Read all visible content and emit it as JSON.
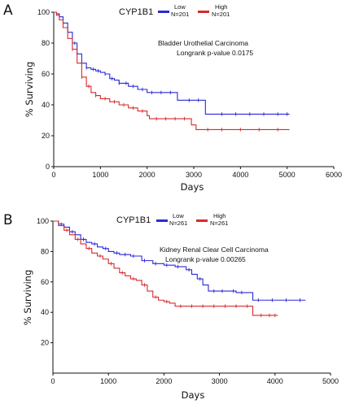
{
  "chart_data": [
    {
      "type": "line",
      "panel_label": "A",
      "gene_label": "CYP1B1",
      "annotation_lines": [
        "Bladder Urothelial Carcinoma",
        "Longrank p-value 0.0175"
      ],
      "xlabel": "Days",
      "ylabel": "% Surviving",
      "xlim": [
        0,
        6000
      ],
      "ylim": [
        0,
        100
      ],
      "xticks": [
        0,
        1000,
        2000,
        3000,
        4000,
        5000,
        6000
      ],
      "yticks": [
        0,
        20,
        40,
        60,
        80,
        100
      ],
      "grid": false,
      "legend_position": "top",
      "series": [
        {
          "name": "Low",
          "legend_sublabel": "N=201",
          "color": "#2a2ad6",
          "points": [
            [
              0,
              100
            ],
            [
              60,
              99
            ],
            [
              120,
              97
            ],
            [
              200,
              93
            ],
            [
              300,
              87
            ],
            [
              400,
              80
            ],
            [
              500,
              73
            ],
            [
              600,
              67
            ],
            [
              700,
              64
            ],
            [
              800,
              63
            ],
            [
              900,
              62
            ],
            [
              1000,
              61
            ],
            [
              1100,
              60
            ],
            [
              1200,
              57
            ],
            [
              1300,
              56
            ],
            [
              1400,
              54
            ],
            [
              1600,
              52
            ],
            [
              1800,
              50
            ],
            [
              2000,
              48
            ],
            [
              2600,
              48
            ],
            [
              2650,
              43
            ],
            [
              3200,
              43
            ],
            [
              3250,
              34
            ],
            [
              5050,
              34
            ]
          ],
          "censor_x": [
            450,
            700,
            850,
            950,
            1100,
            1250,
            1400,
            1550,
            1700,
            1900,
            2100,
            2300,
            2500,
            2900,
            3100,
            3600,
            3900,
            4200,
            4500,
            4800,
            5000
          ]
        },
        {
          "name": "High",
          "legend_sublabel": "N=201",
          "color": "#d62a2a",
          "points": [
            [
              0,
              100
            ],
            [
              60,
              98
            ],
            [
              120,
              95
            ],
            [
              200,
              90
            ],
            [
              300,
              83
            ],
            [
              400,
              76
            ],
            [
              500,
              67
            ],
            [
              600,
              58
            ],
            [
              700,
              52
            ],
            [
              800,
              48
            ],
            [
              900,
              46
            ],
            [
              1000,
              44
            ],
            [
              1200,
              42
            ],
            [
              1400,
              40
            ],
            [
              1600,
              38
            ],
            [
              1800,
              36
            ],
            [
              2000,
              33
            ],
            [
              2050,
              31
            ],
            [
              2900,
              31
            ],
            [
              2950,
              27
            ],
            [
              3000,
              27
            ],
            [
              3050,
              24
            ],
            [
              5050,
              24
            ]
          ],
          "censor_x": [
            400,
            600,
            750,
            900,
            1100,
            1300,
            1500,
            1700,
            1900,
            2200,
            2400,
            2600,
            2800,
            3300,
            3600,
            4000,
            4400,
            4800
          ]
        }
      ]
    },
    {
      "type": "line",
      "panel_label": "B",
      "gene_label": "CYP1B1",
      "annotation_lines": [
        "Kidney Renal Clear Cell Carcinoma",
        "Longrank p-value 0.00265"
      ],
      "xlabel": "Days",
      "ylabel": "% Surviving",
      "xlim": [
        0,
        5000
      ],
      "ylim": [
        0,
        100
      ],
      "xticks": [
        0,
        1000,
        2000,
        3000,
        4000,
        5000
      ],
      "yticks": [
        20,
        40,
        60,
        80,
        100
      ],
      "grid": false,
      "legend_position": "top",
      "series": [
        {
          "name": "Low",
          "legend_sublabel": "N=261",
          "color": "#2a2ad6",
          "points": [
            [
              0,
              100
            ],
            [
              100,
              98
            ],
            [
              200,
              96
            ],
            [
              300,
              93
            ],
            [
              400,
              91
            ],
            [
              500,
              88
            ],
            [
              600,
              86
            ],
            [
              700,
              85
            ],
            [
              800,
              83
            ],
            [
              900,
              82
            ],
            [
              1000,
              80
            ],
            [
              1100,
              79
            ],
            [
              1200,
              78
            ],
            [
              1400,
              77
            ],
            [
              1600,
              74
            ],
            [
              1800,
              72
            ],
            [
              2000,
              71
            ],
            [
              2200,
              70
            ],
            [
              2400,
              68
            ],
            [
              2500,
              65
            ],
            [
              2600,
              62
            ],
            [
              2700,
              58
            ],
            [
              2800,
              54
            ],
            [
              3200,
              54
            ],
            [
              3300,
              53
            ],
            [
              3500,
              53
            ],
            [
              3600,
              48
            ],
            [
              4550,
              48
            ]
          ],
          "censor_x": [
            150,
            350,
            550,
            750,
            950,
            1150,
            1300,
            1450,
            1650,
            1850,
            2050,
            2250,
            2450,
            2650,
            2900,
            3050,
            3250,
            3400,
            3700,
            3950,
            4200,
            4450
          ]
        },
        {
          "name": "High",
          "legend_sublabel": "N=261",
          "color": "#d62a2a",
          "points": [
            [
              0,
              100
            ],
            [
              100,
              97
            ],
            [
              200,
              94
            ],
            [
              300,
              91
            ],
            [
              400,
              88
            ],
            [
              500,
              85
            ],
            [
              600,
              82
            ],
            [
              700,
              79
            ],
            [
              800,
              77
            ],
            [
              900,
              75
            ],
            [
              1000,
              72
            ],
            [
              1100,
              69
            ],
            [
              1200,
              66
            ],
            [
              1300,
              64
            ],
            [
              1400,
              62
            ],
            [
              1500,
              61
            ],
            [
              1600,
              58
            ],
            [
              1700,
              54
            ],
            [
              1800,
              50
            ],
            [
              1900,
              48
            ],
            [
              2000,
              47
            ],
            [
              2100,
              46
            ],
            [
              2200,
              44
            ],
            [
              3550,
              44
            ],
            [
              3600,
              38
            ],
            [
              4050,
              38
            ]
          ],
          "censor_x": [
            250,
            450,
            650,
            850,
            1050,
            1250,
            1450,
            1650,
            1850,
            2050,
            2300,
            2500,
            2700,
            2900,
            3100,
            3300,
            3500,
            3750,
            3900,
            4000
          ]
        }
      ]
    }
  ]
}
